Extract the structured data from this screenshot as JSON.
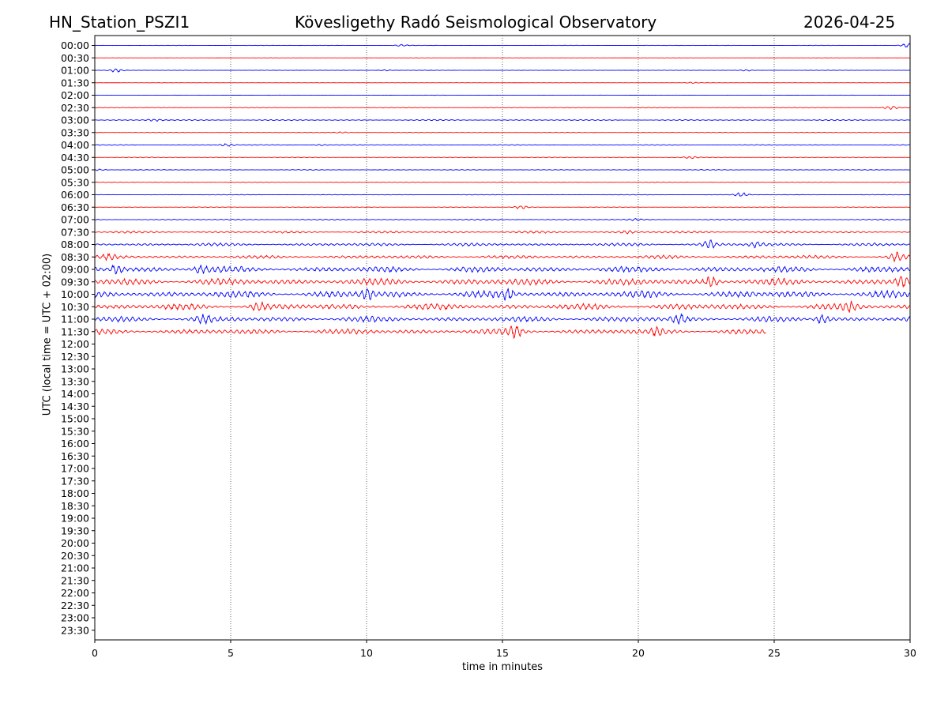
{
  "header": {
    "station": "HN_Station_PSZI1",
    "observatory": "Kövesligethy Radó Seismological Observatory",
    "date": "2026-04-25"
  },
  "chart_data": {
    "type": "line",
    "title": "Kövesligethy Radó Seismological Observatory",
    "xlabel": "time in minutes",
    "ylabel": "UTC (local time = UTC + 02:00)",
    "xlim": [
      0,
      30
    ],
    "x_ticks": [
      0,
      5,
      10,
      15,
      20,
      25,
      30
    ],
    "y_ticks": [
      "00:00",
      "00:30",
      "01:00",
      "01:30",
      "02:00",
      "02:30",
      "03:00",
      "03:30",
      "04:00",
      "04:30",
      "05:00",
      "05:30",
      "06:00",
      "06:30",
      "07:00",
      "07:30",
      "08:00",
      "08:30",
      "09:00",
      "09:30",
      "10:00",
      "10:30",
      "11:00",
      "11:30",
      "12:00",
      "12:30",
      "13:00",
      "13:30",
      "14:00",
      "14:30",
      "15:00",
      "15:30",
      "16:00",
      "16:30",
      "17:00",
      "17:30",
      "18:00",
      "18:30",
      "19:00",
      "19:30",
      "20:00",
      "20:30",
      "21:00",
      "21:30",
      "22:00",
      "22:30",
      "23:00",
      "23:30"
    ],
    "vertical_grid": true,
    "colors": [
      "#0000ff",
      "#ff0000"
    ],
    "traces": [
      {
        "start": "00:00",
        "end_min": 30,
        "level": 0.3,
        "events": [
          [
            11.3,
            1.2
          ],
          [
            29.9,
            2.5
          ]
        ]
      },
      {
        "start": "00:30",
        "end_min": 30,
        "level": 0.2,
        "events": []
      },
      {
        "start": "01:00",
        "end_min": 30,
        "level": 0.3,
        "events": [
          [
            0.8,
            2.5
          ],
          [
            10.7,
            0.8
          ],
          [
            24.0,
            1.0
          ]
        ]
      },
      {
        "start": "01:30",
        "end_min": 30,
        "level": 0.2,
        "events": [
          [
            22.0,
            0.8
          ]
        ]
      },
      {
        "start": "02:00",
        "end_min": 30,
        "level": 0.2,
        "events": []
      },
      {
        "start": "02:30",
        "end_min": 30,
        "level": 0.5,
        "events": [
          [
            29.3,
            2.0
          ]
        ]
      },
      {
        "start": "03:00",
        "end_min": 30,
        "level": 0.8,
        "events": [
          [
            2.2,
            1.5
          ]
        ]
      },
      {
        "start": "03:30",
        "end_min": 30,
        "level": 0.4,
        "events": [
          [
            9.1,
            0.8
          ]
        ]
      },
      {
        "start": "04:00",
        "end_min": 30,
        "level": 0.6,
        "events": [
          [
            4.9,
            2.0
          ],
          [
            8.3,
            1.0
          ]
        ]
      },
      {
        "start": "04:30",
        "end_min": 30,
        "level": 0.5,
        "events": [
          [
            21.9,
            1.5
          ]
        ]
      },
      {
        "start": "05:00",
        "end_min": 30,
        "level": 0.5,
        "events": [
          [
            0.2,
            1.0
          ]
        ]
      },
      {
        "start": "05:30",
        "end_min": 30,
        "level": 0.4,
        "events": []
      },
      {
        "start": "06:00",
        "end_min": 30,
        "level": 0.4,
        "events": [
          [
            23.8,
            3.0
          ]
        ]
      },
      {
        "start": "06:30",
        "end_min": 30,
        "level": 0.4,
        "events": [
          [
            15.7,
            2.5
          ]
        ]
      },
      {
        "start": "07:00",
        "end_min": 30,
        "level": 0.8,
        "events": [
          [
            19.9,
            1.0
          ]
        ]
      },
      {
        "start": "07:30",
        "end_min": 30,
        "level": 1.6,
        "events": [
          [
            19.6,
            1.5
          ]
        ]
      },
      {
        "start": "08:00",
        "end_min": 30,
        "level": 2.2,
        "events": [
          [
            22.6,
            5.0
          ],
          [
            24.3,
            3.0
          ]
        ]
      },
      {
        "start": "08:30",
        "end_min": 30,
        "level": 2.5,
        "events": [
          [
            29.5,
            5.0
          ],
          [
            0.5,
            3.0
          ]
        ]
      },
      {
        "start": "09:00",
        "end_min": 30,
        "level": 4.5,
        "events": [
          [
            0.8,
            5.0
          ],
          [
            3.9,
            4.0
          ]
        ]
      },
      {
        "start": "09:30",
        "end_min": 30,
        "level": 5.0,
        "events": [
          [
            22.7,
            6.0
          ],
          [
            29.7,
            6.0
          ]
        ]
      },
      {
        "start": "10:00",
        "end_min": 30,
        "level": 5.0,
        "events": [
          [
            10.0,
            6.0
          ],
          [
            15.2,
            6.0
          ]
        ]
      },
      {
        "start": "10:30",
        "end_min": 30,
        "level": 4.5,
        "events": [
          [
            6.0,
            5.0
          ],
          [
            27.8,
            5.0
          ]
        ]
      },
      {
        "start": "11:00",
        "end_min": 30,
        "level": 4.0,
        "events": [
          [
            4.0,
            5.0
          ],
          [
            21.5,
            5.0
          ],
          [
            26.8,
            6.0
          ]
        ]
      },
      {
        "start": "11:30",
        "end_min": 24.7,
        "level": 4.0,
        "events": [
          [
            15.5,
            6.0
          ],
          [
            20.7,
            4.0
          ]
        ]
      }
    ]
  }
}
